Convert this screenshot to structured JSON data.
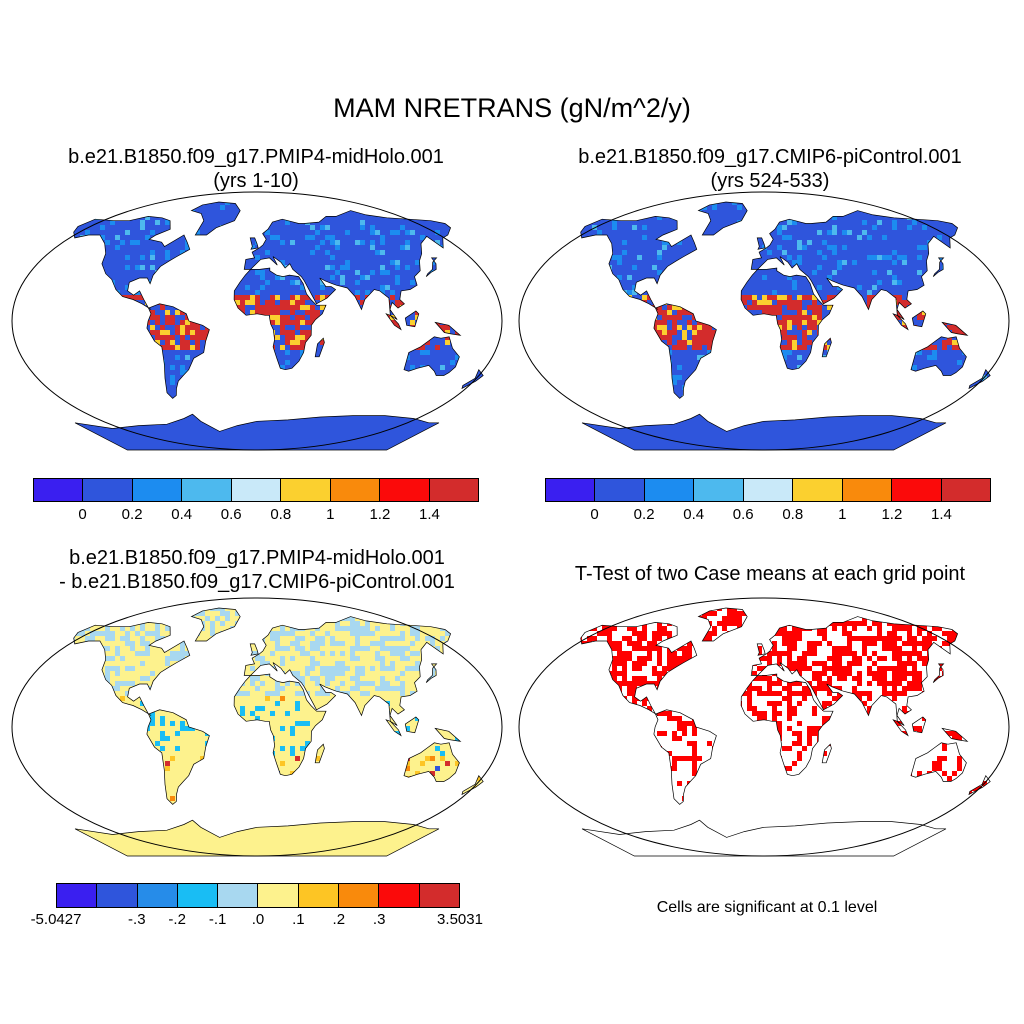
{
  "title": "MAM NRETRANS (gN/m^2/y)",
  "panels": [
    {
      "title_line1": "b.e21.B1850.f09_g17.PMIP4-midHolo.001",
      "title_line2": "(yrs 1-10)"
    },
    {
      "title_line1": "b.e21.B1850.f09_g17.CMIP6-piControl.001",
      "title_line2": "(yrs 524-533)"
    },
    {
      "title_line1": "b.e21.B1850.f09_g17.PMIP4-midHolo.001",
      "title_line2": "- b.e21.B1850.f09_g17.CMIP6-piControl.001"
    },
    {
      "title_line1": "T-Test of two Case means at each grid point",
      "title_line2": ""
    }
  ],
  "colorbar_abs": {
    "colors": [
      "#3a1ff0",
      "#2f55dc",
      "#1c8cf0",
      "#4db9ee",
      "#c9e9f9",
      "#fbd02f",
      "#f98a0c",
      "#fb0a0a",
      "#d32c2c"
    ],
    "labels": [
      "0",
      "0.2",
      "0.4",
      "0.6",
      "0.8",
      "1",
      "1.2",
      "1.4"
    ]
  },
  "colorbar_diff": {
    "colors": [
      "#3a1ff0",
      "#2f55dc",
      "#268ce9",
      "#19bdf4",
      "#a8d8f0",
      "#fdf28d",
      "#fdc524",
      "#f98a0c",
      "#fb0a0a",
      "#d32c2c"
    ],
    "labels": [
      "-5.0427",
      "-.3",
      "-.2",
      "-.1",
      ".0",
      ".1",
      ".2",
      ".3",
      "3.5031"
    ]
  },
  "ttest_note": "Cells are significant at 0.1 level"
}
